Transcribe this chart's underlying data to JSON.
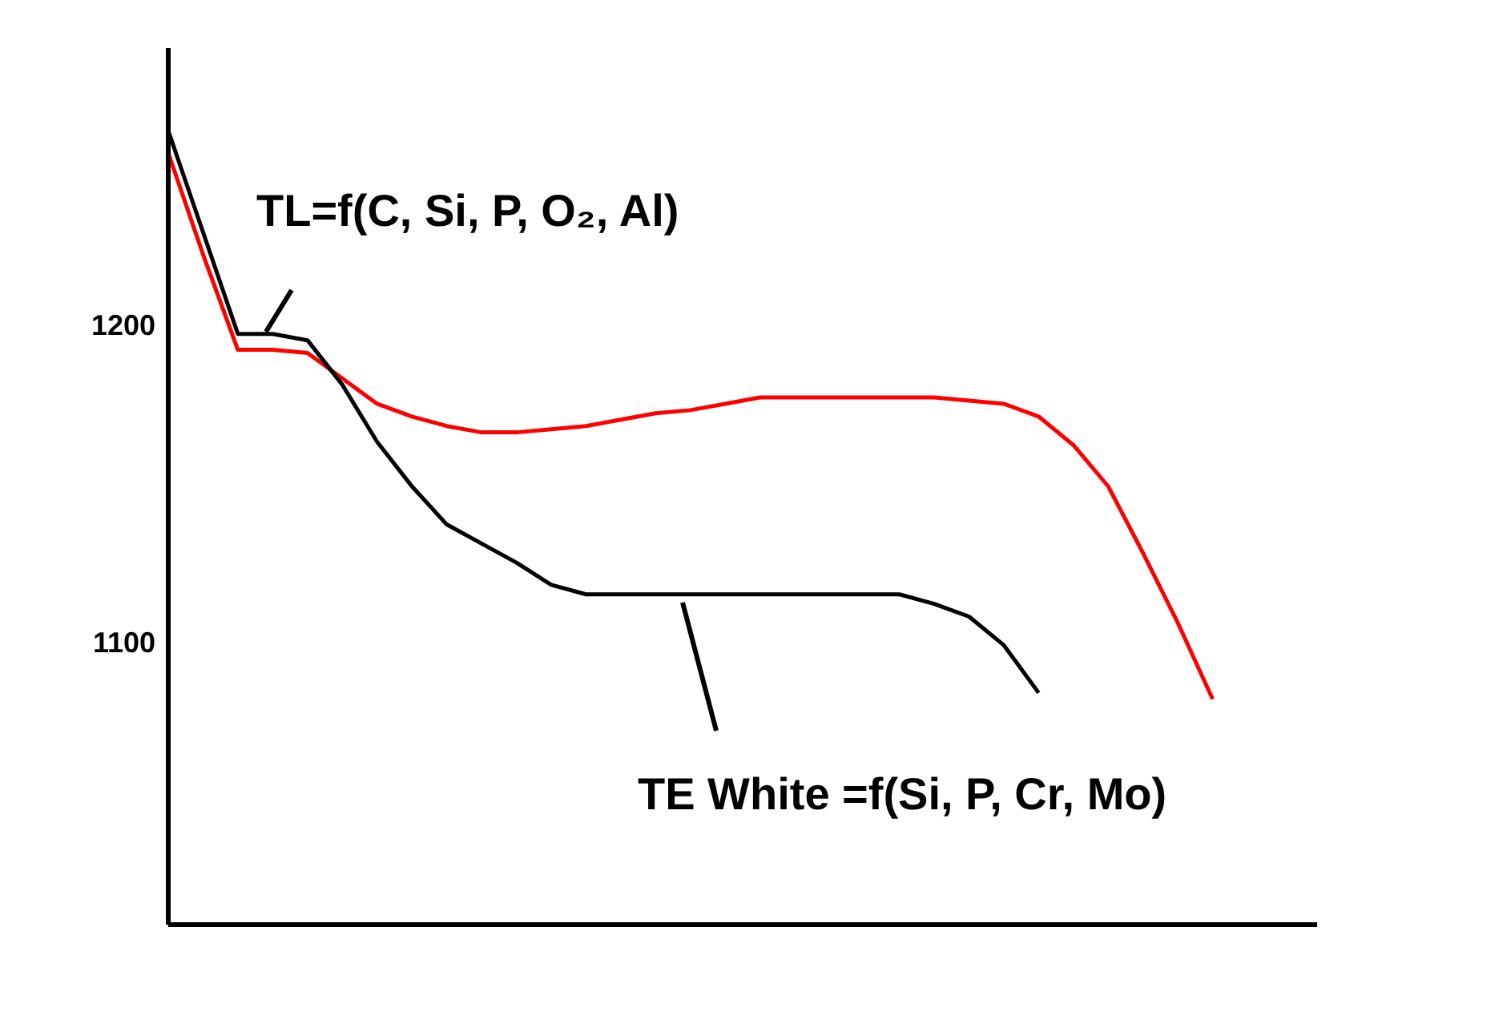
{
  "chart_data": {
    "type": "line",
    "categories": [
      null,
      null,
      null,
      null,
      null,
      null,
      null,
      null,
      null,
      null,
      null,
      null,
      null,
      null,
      null,
      null,
      null,
      null,
      null,
      null,
      null,
      null,
      null,
      null,
      null,
      null,
      null,
      null,
      null,
      null,
      null,
      null,
      null,
      null
    ],
    "series": [
      {
        "color": "#ff0000",
        "values": [
          1254,
          1222,
          1192,
          1192,
          1191,
          1183,
          1175,
          1171,
          1168,
          1166,
          1166,
          1167,
          1168,
          1170,
          1172,
          1173,
          1175,
          1177,
          1177,
          1177,
          1177,
          1177,
          1177,
          1176,
          1175,
          1171,
          1162,
          1149,
          1128,
          1106,
          1082,
          null,
          null,
          null
        ]
      },
      {
        "color": "#000000",
        "values": [
          1261,
          1229,
          1197,
          1197,
          1195,
          1181,
          1163,
          1149,
          1137,
          1131,
          1125,
          1118,
          1115,
          1115,
          1115,
          1115,
          1115,
          1115,
          1115,
          1115,
          1115,
          1115,
          1112,
          1108,
          1099,
          1084,
          null,
          null,
          null,
          null,
          null,
          null,
          null,
          null
        ]
      }
    ],
    "ylim": [
      1011,
      1287
    ],
    "yticks": [
      1100,
      1200
    ],
    "tick_labels": "y",
    "marker": "none",
    "line_style": "solid",
    "annotations": [
      "TL=f(C, Si, P, O₂, Al)",
      "TE White =f(Si, P, Cr, Mo)"
    ]
  }
}
